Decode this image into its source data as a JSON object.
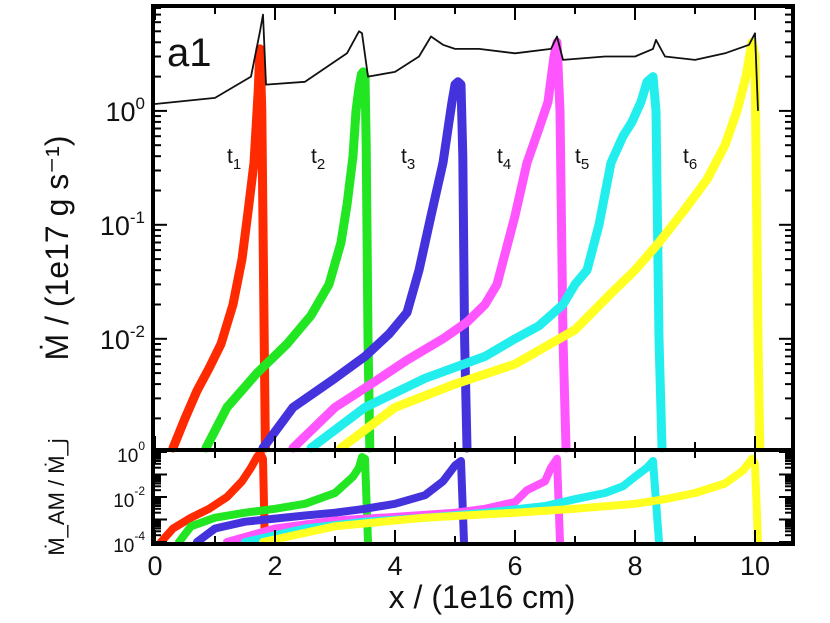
{
  "figure": {
    "panel_label": "a1",
    "xlabel": "x / (1e16 cm)",
    "ylabel_top": "Ṁ / (1e17 g s⁻¹)",
    "ylabel_bottom": "Ṁ_AM / Ṁ_j"
  },
  "chart_data": [
    {
      "panel": "top",
      "type": "line",
      "title": "",
      "xlabel": "x / (1e16 cm)",
      "ylabel": "Ṁ / (1e17 g s⁻¹)",
      "yscale": "log",
      "xlim": [
        0,
        10.6
      ],
      "ylim": [
        0.0011,
        8
      ],
      "xticks": [
        0,
        2,
        4,
        6,
        8,
        10
      ],
      "yticks": [
        {
          "value": 1,
          "base": "10",
          "exp": "0"
        },
        {
          "value": 0.1,
          "base": "10",
          "exp": "-1"
        },
        {
          "value": 0.01,
          "base": "10",
          "exp": "-2"
        }
      ],
      "series": [
        {
          "name": "t1",
          "label_base": "t",
          "label_sub": "1",
          "color": "#ff2a00",
          "label_x": 1.2,
          "label_y": 0.35,
          "x": [
            0.3,
            0.5,
            0.7,
            0.9,
            1.1,
            1.3,
            1.45,
            1.55,
            1.65,
            1.72,
            1.75,
            1.78,
            1.8,
            1.82,
            1.84
          ],
          "y": [
            0.0011,
            0.002,
            0.0035,
            0.0055,
            0.009,
            0.02,
            0.05,
            0.13,
            0.35,
            1.5,
            3.5,
            1.0,
            0.1,
            0.01,
            0.0011
          ]
        },
        {
          "name": "t2",
          "label_base": "t",
          "label_sub": "2",
          "color": "#22e622",
          "label_x": 2.6,
          "label_y": 0.35,
          "x": [
            0.85,
            1.2,
            1.7,
            2.2,
            2.6,
            2.9,
            3.1,
            3.2,
            3.3,
            3.35,
            3.4,
            3.44,
            3.47,
            3.5,
            3.52,
            3.55,
            3.58
          ],
          "y": [
            0.0011,
            0.0025,
            0.005,
            0.009,
            0.016,
            0.03,
            0.07,
            0.15,
            0.4,
            1.0,
            1.6,
            2.1,
            2.2,
            2.0,
            0.5,
            0.01,
            0.0011
          ]
        },
        {
          "name": "t3",
          "label_base": "t",
          "label_sub": "3",
          "color": "#4433dd",
          "label_x": 4.1,
          "label_y": 0.35,
          "x": [
            1.8,
            2.3,
            3.0,
            3.5,
            3.9,
            4.2,
            4.4,
            4.6,
            4.8,
            4.9,
            4.95,
            5.0,
            5.05,
            5.1,
            5.13,
            5.16,
            5.2
          ],
          "y": [
            0.0011,
            0.0025,
            0.0045,
            0.007,
            0.011,
            0.017,
            0.04,
            0.12,
            0.35,
            0.8,
            1.2,
            1.7,
            1.8,
            1.7,
            0.4,
            0.01,
            0.0011
          ]
        },
        {
          "name": "t4",
          "label_base": "t",
          "label_sub": "4",
          "color": "#ff55ff",
          "label_x": 5.7,
          "label_y": 0.35,
          "x": [
            2.3,
            3.0,
            3.6,
            4.2,
            4.8,
            5.2,
            5.5,
            5.7,
            6.0,
            6.2,
            6.4,
            6.55,
            6.65,
            6.7,
            6.75,
            6.8,
            6.85
          ],
          "y": [
            0.0011,
            0.0025,
            0.004,
            0.0065,
            0.01,
            0.014,
            0.02,
            0.03,
            0.12,
            0.35,
            0.7,
            1.2,
            3.0,
            4.0,
            1.0,
            0.01,
            0.0011
          ]
        },
        {
          "name": "t5",
          "label_base": "t",
          "label_sub": "5",
          "color": "#22eeee",
          "label_x": 7.0,
          "label_y": 0.35,
          "x": [
            2.6,
            3.5,
            4.5,
            5.5,
            6.0,
            6.4,
            6.8,
            7.0,
            7.2,
            7.4,
            7.6,
            7.8,
            7.95,
            8.1,
            8.2,
            8.3,
            8.35,
            8.4,
            8.45
          ],
          "y": [
            0.0011,
            0.0025,
            0.0045,
            0.007,
            0.01,
            0.013,
            0.02,
            0.03,
            0.04,
            0.1,
            0.35,
            0.6,
            0.8,
            1.2,
            1.8,
            2.0,
            1.0,
            0.01,
            0.0011
          ]
        },
        {
          "name": "t6",
          "label_base": "t",
          "label_sub": "6",
          "color": "#ffff22",
          "label_x": 8.8,
          "label_y": 0.35,
          "x": [
            3.1,
            4.0,
            5.0,
            6.0,
            7.0,
            7.6,
            8.0,
            8.4,
            8.8,
            9.2,
            9.5,
            9.7,
            9.85,
            9.95,
            10.0,
            10.05,
            10.08
          ],
          "y": [
            0.0011,
            0.0025,
            0.004,
            0.006,
            0.012,
            0.025,
            0.04,
            0.07,
            0.13,
            0.25,
            0.5,
            1.0,
            2.0,
            4.0,
            3.0,
            0.01,
            0.0011
          ]
        },
        {
          "name": "envelope",
          "color": "#111111",
          "x": [
            0.0,
            1.0,
            1.6,
            1.75,
            1.8,
            1.85,
            2.5,
            3.2,
            3.4,
            3.45,
            3.55,
            4.0,
            4.4,
            4.6,
            4.8,
            5.0,
            5.4,
            6.0,
            6.6,
            6.7,
            6.8,
            7.5,
            8.0,
            8.3,
            8.35,
            8.5,
            9.0,
            9.5,
            9.9,
            10.0,
            10.05
          ],
          "y": [
            1.15,
            1.3,
            2.0,
            5.0,
            7.0,
            1.7,
            1.8,
            3.2,
            5.0,
            4.8,
            2.0,
            2.2,
            3.0,
            4.5,
            3.8,
            3.5,
            3.5,
            3.2,
            3.5,
            4.5,
            2.8,
            3.0,
            3.0,
            3.5,
            4.2,
            3.0,
            2.8,
            3.2,
            3.8,
            4.8,
            1.0
          ]
        }
      ]
    },
    {
      "panel": "bottom",
      "type": "line",
      "xlabel": "x / (1e16 cm)",
      "ylabel": "Ṁ_AM / Ṁ_j",
      "yscale": "log",
      "xlim": [
        0,
        10.6
      ],
      "ylim": [
        0.0001,
        1
      ],
      "xticks": [
        0,
        2,
        4,
        6,
        8,
        10
      ],
      "yticks": [
        {
          "value": 1,
          "base": "10",
          "exp": "0"
        },
        {
          "value": 0.01,
          "base": "10",
          "exp": "-2"
        },
        {
          "value": 0.0001,
          "base": "10",
          "exp": "-4"
        }
      ],
      "series": [
        {
          "name": "t1",
          "color": "#ff2a00",
          "x": [
            0.1,
            0.3,
            0.6,
            0.9,
            1.2,
            1.45,
            1.6,
            1.7,
            1.75,
            1.8,
            1.83
          ],
          "y": [
            0.0001,
            0.0004,
            0.0012,
            0.003,
            0.01,
            0.05,
            0.2,
            0.6,
            0.9,
            0.5,
            0.0001
          ]
        },
        {
          "name": "t2",
          "color": "#22e622",
          "x": [
            0.4,
            0.6,
            1.0,
            1.5,
            2.0,
            2.5,
            3.0,
            3.3,
            3.4,
            3.45,
            3.5,
            3.55
          ],
          "y": [
            0.0001,
            0.0005,
            0.0012,
            0.002,
            0.003,
            0.005,
            0.015,
            0.08,
            0.2,
            0.6,
            0.5,
            0.0001
          ]
        },
        {
          "name": "t3",
          "color": "#4433dd",
          "x": [
            0.7,
            1.0,
            1.5,
            2.0,
            2.5,
            3.0,
            3.5,
            4.0,
            4.5,
            4.8,
            5.0,
            5.1,
            5.15
          ],
          "y": [
            0.0001,
            0.0004,
            0.0008,
            0.0011,
            0.0015,
            0.002,
            0.003,
            0.005,
            0.012,
            0.05,
            0.25,
            0.4,
            0.0001
          ]
        },
        {
          "name": "t4",
          "color": "#ff55ff",
          "x": [
            1.2,
            2.0,
            3.0,
            4.0,
            5.0,
            5.5,
            6.0,
            6.2,
            6.5,
            6.6,
            6.7,
            6.75
          ],
          "y": [
            0.0001,
            0.0004,
            0.0009,
            0.0013,
            0.002,
            0.003,
            0.006,
            0.02,
            0.05,
            0.2,
            0.5,
            0.0001
          ]
        },
        {
          "name": "t5",
          "color": "#22eeee",
          "x": [
            1.5,
            2.5,
            3.5,
            4.5,
            5.5,
            6.5,
            7.0,
            7.5,
            7.8,
            8.0,
            8.2,
            8.3,
            8.4
          ],
          "y": [
            0.0001,
            0.0004,
            0.0008,
            0.0012,
            0.002,
            0.004,
            0.008,
            0.015,
            0.03,
            0.08,
            0.2,
            0.4,
            0.0001
          ]
        },
        {
          "name": "t6",
          "color": "#ffff22",
          "x": [
            1.8,
            3.0,
            4.5,
            6.0,
            7.0,
            8.0,
            8.5,
            9.0,
            9.5,
            9.8,
            9.95,
            10.0,
            10.05
          ],
          "y": [
            0.0001,
            0.0005,
            0.0012,
            0.002,
            0.003,
            0.005,
            0.008,
            0.015,
            0.04,
            0.15,
            0.5,
            0.3,
            0.0001
          ]
        }
      ]
    }
  ]
}
